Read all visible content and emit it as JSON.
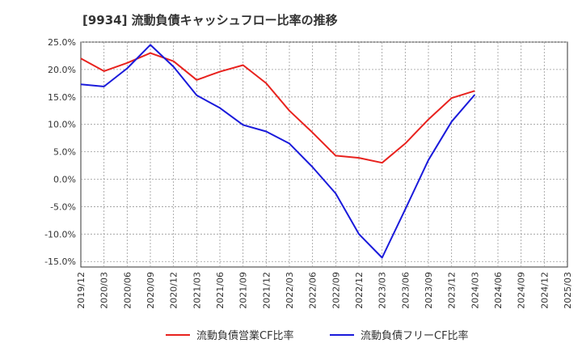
{
  "chart_data": {
    "type": "line",
    "title": "[9934]  流動負債キャッシュフロー比率の推移",
    "xlabel": "",
    "ylabel": "",
    "categories": [
      "2019/12",
      "2020/03",
      "2020/06",
      "2020/09",
      "2020/12",
      "2021/03",
      "2021/06",
      "2021/09",
      "2021/12",
      "2022/03",
      "2022/06",
      "2022/09",
      "2022/12",
      "2023/03",
      "2023/06",
      "2023/09",
      "2023/12",
      "2024/03",
      "2024/06",
      "2024/09",
      "2024/12",
      "2025/03"
    ],
    "y_ticks": [
      "25.0%",
      "20.0%",
      "15.0%",
      "10.0%",
      "5.0%",
      "0.0%",
      "-5.0%",
      "-10.0%",
      "-15.0%"
    ],
    "ylim": [
      -16,
      25
    ],
    "grid": true,
    "legend_position": "bottom",
    "series": [
      {
        "name": "流動負債営業CF比率",
        "color": "#e8221e",
        "values": [
          22.0,
          19.7,
          21.2,
          23.0,
          21.5,
          18.1,
          19.6,
          20.8,
          17.5,
          12.5,
          8.5,
          4.3,
          3.9,
          3.0,
          6.5,
          10.9,
          14.8,
          16.1,
          null,
          null,
          null,
          null
        ]
      },
      {
        "name": "流動負債フリーCF比率",
        "color": "#1a1adb",
        "values": [
          17.3,
          16.9,
          20.2,
          24.5,
          20.5,
          15.3,
          13.0,
          9.9,
          8.7,
          6.5,
          2.2,
          -2.6,
          -10.0,
          -14.3,
          -5.5,
          3.5,
          10.5,
          15.4,
          null,
          null,
          null,
          null
        ]
      }
    ]
  }
}
